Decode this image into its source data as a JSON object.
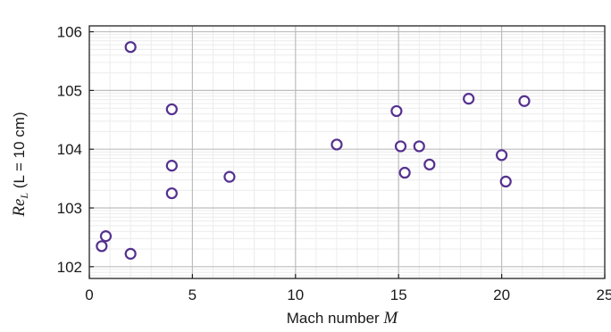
{
  "chart_data": {
    "type": "scatter",
    "title": "",
    "xlabel": {
      "text": "Mach number ",
      "symbol": "M"
    },
    "ylabel": {
      "prefix": "Re",
      "subscript": "L",
      "rest": " (L = 10 cm)"
    },
    "xlim": [
      0,
      25
    ],
    "ylim_log10": [
      101.8,
      106.1
    ],
    "x_ticks": [
      0,
      5,
      10,
      15,
      20,
      25
    ],
    "x_tick_labels": [
      "0",
      "5",
      "10",
      "15",
      "20",
      "25"
    ],
    "y_ticks": [
      102,
      103,
      104,
      105,
      106
    ],
    "y_tick_labels": [
      "102",
      "103",
      "104",
      "105",
      "106"
    ],
    "grid": true,
    "legend": "none",
    "marker": {
      "shape": "open-circle",
      "color": "#55318f"
    },
    "points": [
      {
        "x": 0.6,
        "y": 102.35
      },
      {
        "x": 0.8,
        "y": 102.52
      },
      {
        "x": 2.0,
        "y": 102.22
      },
      {
        "x": 2.0,
        "y": 105.74
      },
      {
        "x": 4.0,
        "y": 104.68
      },
      {
        "x": 4.0,
        "y": 103.72
      },
      {
        "x": 4.0,
        "y": 103.25
      },
      {
        "x": 6.8,
        "y": 103.53
      },
      {
        "x": 12.0,
        "y": 104.08
      },
      {
        "x": 14.9,
        "y": 104.65
      },
      {
        "x": 15.1,
        "y": 104.05
      },
      {
        "x": 15.3,
        "y": 103.6
      },
      {
        "x": 16.0,
        "y": 104.05
      },
      {
        "x": 16.5,
        "y": 103.74
      },
      {
        "x": 18.4,
        "y": 104.86
      },
      {
        "x": 20.0,
        "y": 103.9
      },
      {
        "x": 20.2,
        "y": 103.45
      },
      {
        "x": 21.1,
        "y": 104.82
      }
    ]
  }
}
